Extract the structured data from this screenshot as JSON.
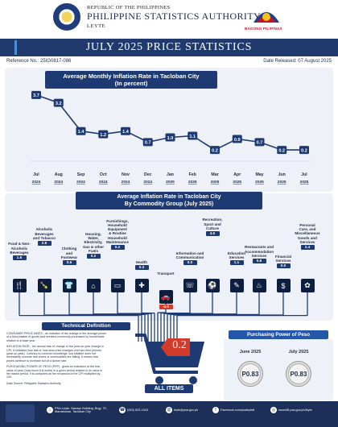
{
  "header": {
    "republic": "REPUBLIC OF THE PHILIPPINES",
    "agency": "PHILIPPINE STATISTICS AUTHORITY",
    "office": "LEYTE",
    "logo_right_label": "BAGONG PILIPINAS"
  },
  "title": "JULY 2025 PRICE STATISTICS",
  "reference": "Reference No.: 25IG0817-086",
  "release": "Date Released: 07 August 2025",
  "colors": {
    "navy": "#1d3a72",
    "accent_red": "#d23a2a",
    "bg_light": "#eef2f8"
  },
  "monthly": {
    "title": "Average Monthly Inflation Rate in Tacloban City",
    "subtitle": "(In percent)"
  },
  "chart_data": {
    "type": "line",
    "title": "Average Monthly Inflation Rate in Tacloban City",
    "subtitle": "(In percent)",
    "x": [
      "Jul 2024",
      "Aug 2024",
      "Sep 2024",
      "Oct 2024",
      "Nov 2024",
      "Dec 2024",
      "Jan 2025",
      "Feb 2025",
      "Mar 2025",
      "Apr 2025",
      "May 2025",
      "Jun 2025",
      "Jul 2025"
    ],
    "month_labels": [
      "Jul",
      "Aug",
      "Sep",
      "Oct",
      "Nov",
      "Dec",
      "Jan",
      "Feb",
      "Mar",
      "Apr",
      "May",
      "Jun",
      "Jul"
    ],
    "year_labels": [
      "2024",
      "2024",
      "2024",
      "2024",
      "2024",
      "2024",
      "2025",
      "2025",
      "2025",
      "2025",
      "2025",
      "2025",
      "2025"
    ],
    "values": [
      3.7,
      3.2,
      1.4,
      1.2,
      1.4,
      0.7,
      1.0,
      1.1,
      0.2,
      0.9,
      0.7,
      0.2,
      0.2
    ],
    "data_labels": [
      "3.7",
      "3.2",
      "1.4",
      "1.2",
      "1.4",
      "0.7",
      "1.0",
      "1.1",
      "0.2",
      "0.9",
      "0.7",
      "0.2",
      "0.2"
    ],
    "ylim": [
      0,
      4
    ],
    "grid": false
  },
  "commodity": {
    "title_line1": "Average Inflation Rate in Tacloban City",
    "title_line2": "By Commodity Group (July 2025)",
    "groups": [
      {
        "label": "Food & Non-Alcoholic Beverages",
        "value": "1.6",
        "icon": "food-icon"
      },
      {
        "label": "Alcoholic Beverages and Tobacco",
        "value": "2.8",
        "icon": "bottle-icon"
      },
      {
        "label": "Clothing and Footwear",
        "value": "0.6",
        "icon": "shirt-icon"
      },
      {
        "label": "Housing, Water, Electricity, Gas & other Fuels",
        "value": "0.2",
        "icon": "house-icon"
      },
      {
        "label": "Furnishings, Household Equipment & Routine Household Maintenance",
        "value": "0.2",
        "icon": "sofa-icon"
      },
      {
        "label": "Health",
        "value": "0.3",
        "icon": "health-icon"
      },
      {
        "label": "Transport",
        "value": "-4.0",
        "icon": "car-icon"
      },
      {
        "label": "Information and Communication",
        "value": "0.0",
        "icon": "phone-icon"
      },
      {
        "label": "Recreation, Sport and Culture",
        "value": "4.5",
        "icon": "ball-icon"
      },
      {
        "label": "Education Services",
        "value": "1.1",
        "icon": "book-icon"
      },
      {
        "label": "Restaurants and Accommodation Services",
        "value": "0.8",
        "icon": "fork-icon"
      },
      {
        "label": "Financial Services",
        "value": "0.0",
        "icon": "money-icon"
      },
      {
        "label": "Personal Care, and Miscellaneous Goods and Services",
        "value": "2.4",
        "icon": "care-icon"
      }
    ]
  },
  "technical": {
    "heading": "Technical Definition",
    "p1": "CONSUMER PRICE INDEX - an indicator of the change in the average prices of a fixed basket of goods and services commonly purchased by households relative to a base year.",
    "p2": "INFLATION RATE - the annual rate of change or the year-on-year change in CPI. It indicates how fast or how slow price changes over two time periods (year-on-year). Contrary to common knowledge, low inflation does not necessarily connote that prices of commodities are falling. It means that prices continue to increase but at a slower rate.",
    "p3": "PURCHASING POWER OF PESO (PPP) - gives an indication of the real value of peso (how much it is worth) in a given period relative to its value in the based period. It is computed as the reciprocal of the CPI multiplied by 100.",
    "source": "Data Source: Philippine Statistics Authority"
  },
  "all_items": {
    "value": "0.2",
    "label": "ALL ITEMS"
  },
  "purchasing_power": {
    "heading": "Purchasing Power of Peso",
    "months": [
      {
        "label": "June 2025",
        "value": "P0.83"
      },
      {
        "label": "July 2025",
        "value": "P0.83"
      }
    ]
  },
  "footer": {
    "address": "PSA-Leyte, Nanays Building, Brgy. 79, Marasbaras, Tacloban City",
    "phone": "(053) 523-1343",
    "email": "leyte@psa.gov.ph",
    "facebook": "Facebook.com/psaleyte8",
    "website": "rssos08.psa.gov.ph/leyte"
  }
}
